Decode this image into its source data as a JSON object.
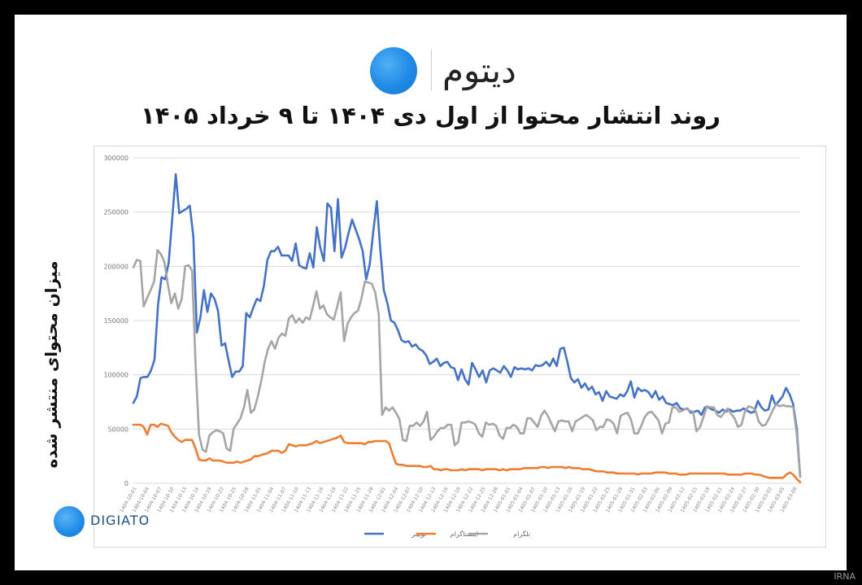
{
  "brand": {
    "name_fa": "دیتوم",
    "footer_logo_text": "DIGIATO"
  },
  "title": "روند انتشار محتوا از اول دی ۱۴۰۴ تا ۹ خرداد ۱۴۰۵",
  "watermark": "IRNA",
  "colors": {
    "twitter": "#4472c4",
    "instagram": "#ed7d31",
    "telegram": "#a5a5a5",
    "brand_blue": "#1f8ae6"
  },
  "chart_data": {
    "type": "line",
    "ylabel": "میزان محتوای منتشر شده",
    "ylim": [
      0,
      300000
    ],
    "yticks": [
      0,
      50000,
      100000,
      150000,
      200000,
      250000,
      300000
    ],
    "ytick_labels": [
      "0",
      "50000",
      "100000",
      "150000",
      "200000",
      "250000",
      "300000"
    ],
    "grid": true,
    "legend_position": "bottom",
    "x_range": [
      "1404-10-01",
      "1405-03-09"
    ],
    "x_ticks": [
      "1404-10-01",
      "1404-10-04",
      "1404-10-07",
      "1404-10-10",
      "1404-10-13",
      "1404-10-16",
      "1404-10-19",
      "1404-10-22",
      "1404-10-25",
      "1404-10-28",
      "1404-11-01",
      "1404-11-04",
      "1404-11-07",
      "1404-11-10",
      "1404-11-13",
      "1404-11-16",
      "1404-11-19",
      "1404-11-22",
      "1404-11-25",
      "1404-11-28",
      "1404-12-01",
      "1404-12-04",
      "1404-12-07",
      "1404-12-10",
      "1404-12-13",
      "1404-12-16",
      "1404-12-19",
      "1404-12-22",
      "1404-12-25",
      "1404-12-28",
      "1405-01-01",
      "1405-01-04",
      "1405-01-07",
      "1405-01-10",
      "1405-01-13",
      "1405-01-16",
      "1405-01-19",
      "1405-01-22",
      "1405-01-25",
      "1405-01-28",
      "1405-01-31",
      "1405-02-03",
      "1405-02-06",
      "1405-02-09",
      "1405-02-12",
      "1405-02-15",
      "1405-02-18",
      "1405-02-21",
      "1405-02-24",
      "1405-02-27",
      "1405-02-30",
      "1405-03-02",
      "1405-03-05",
      "1405-03-08"
    ],
    "series": [
      {
        "name": "توییتر",
        "color_key": "twitter",
        "values": [
          74000,
          80000,
          97000,
          98000,
          98000,
          104000,
          114000,
          165000,
          190000,
          188000,
          203000,
          243000,
          285000,
          249000,
          251000,
          253000,
          256000,
          227000,
          139000,
          153000,
          178000,
          158000,
          175000,
          170000,
          159000,
          127000,
          129000,
          113000,
          98000,
          103000,
          103000,
          108000,
          157000,
          153000,
          162000,
          170000,
          168000,
          182000,
          206000,
          214000,
          214000,
          218000,
          210000,
          210000,
          210000,
          205000,
          221000,
          201000,
          199000,
          198000,
          212000,
          199000,
          236000,
          217000,
          205000,
          258000,
          254000,
          214000,
          262000,
          208000,
          217000,
          231000,
          243000,
          234000,
          225000,
          214000,
          188000,
          202000,
          232000,
          260000,
          215000,
          178000,
          166000,
          150000,
          148000,
          141000,
          132000,
          130000,
          131000,
          126000,
          128000,
          124000,
          122000,
          118000,
          110000,
          112000,
          115000,
          108000,
          111000,
          112000,
          107000,
          106000,
          95000,
          105000,
          96000,
          91000,
          111000,
          105000,
          98000,
          104000,
          93000,
          104000,
          106000,
          104000,
          102000,
          108000,
          104000,
          98000,
          107000,
          105000,
          106000,
          105000,
          106000,
          104000,
          109000,
          108000,
          109000,
          112000,
          108000,
          115000,
          108000,
          124000,
          125000,
          112000,
          97000,
          93000,
          96000,
          88000,
          92000,
          86000,
          89000,
          82000,
          84000,
          76000,
          85000,
          80000,
          79000,
          78000,
          82000,
          80000,
          85000,
          94000,
          79000,
          88000,
          85000,
          86000,
          84000,
          79000,
          85000,
          77000,
          80000,
          74000,
          73000,
          72000,
          74000,
          69000,
          68000,
          69000,
          65000,
          66000,
          67000,
          63000,
          70000,
          70000,
          68000,
          67000,
          65000,
          68000,
          66000,
          68000,
          66000,
          67000,
          67000,
          69000,
          67000,
          65000,
          66000,
          76000,
          70000,
          67000,
          68000,
          81000,
          72000,
          76000,
          80000,
          88000,
          82000,
          73000,
          51000,
          6000
        ]
      },
      {
        "name": "اینستاگرام",
        "color_key": "instagram",
        "values": [
          54000,
          54000,
          54000,
          52000,
          45000,
          54000,
          54000,
          52000,
          55000,
          54000,
          53000,
          47000,
          43000,
          40000,
          38000,
          40000,
          40000,
          40000,
          32000,
          22000,
          21000,
          21000,
          23000,
          21000,
          21000,
          21000,
          20000,
          19000,
          19000,
          19000,
          20000,
          19000,
          20000,
          21000,
          22000,
          25000,
          25000,
          26000,
          27000,
          28000,
          30000,
          30000,
          30000,
          28000,
          30000,
          36000,
          35000,
          34000,
          35000,
          35000,
          35000,
          36000,
          37000,
          39000,
          37000,
          38000,
          39000,
          40000,
          41000,
          42000,
          44000,
          38000,
          37000,
          37000,
          37000,
          37000,
          37000,
          36000,
          38000,
          38000,
          39000,
          39000,
          39000,
          39000,
          37000,
          27000,
          18000,
          17000,
          17000,
          16000,
          16000,
          16000,
          16000,
          16000,
          15000,
          15000,
          16000,
          13000,
          13000,
          12000,
          13000,
          13000,
          12000,
          12000,
          12000,
          13000,
          12000,
          13000,
          13000,
          13000,
          13000,
          12000,
          13000,
          13000,
          13000,
          13000,
          12000,
          13000,
          12000,
          13000,
          13000,
          13000,
          13000,
          14000,
          14000,
          14000,
          14000,
          14000,
          15000,
          15000,
          14000,
          15000,
          15000,
          15000,
          15000,
          14000,
          15000,
          14000,
          14000,
          14000,
          13000,
          13000,
          13000,
          12000,
          11000,
          11000,
          11000,
          10000,
          10000,
          10000,
          9000,
          9000,
          9000,
          9000,
          9000,
          9000,
          8000,
          9000,
          9000,
          9000,
          9000,
          10000,
          10000,
          10000,
          10000,
          9000,
          9000,
          9000,
          8000,
          8000,
          8000,
          9000,
          9000,
          9000,
          9000,
          9000,
          9000,
          9000,
          9000,
          9000,
          9000,
          9000,
          8000,
          8000,
          8000,
          8000,
          8000,
          9000,
          9000,
          9000,
          8000,
          8000,
          7000,
          6000,
          5000,
          5000,
          5000,
          5000,
          5000,
          8000,
          10000,
          8000,
          4000,
          1000
        ]
      },
      {
        "name": "تلگرام",
        "color_key": "telegram",
        "values": [
          199000,
          206000,
          205000,
          163000,
          171000,
          178000,
          186000,
          215000,
          211000,
          204000,
          183000,
          166000,
          175000,
          161000,
          170000,
          200000,
          201000,
          196000,
          110000,
          45000,
          31000,
          29000,
          44000,
          47000,
          49000,
          48000,
          46000,
          32000,
          30000,
          50000,
          55000,
          60000,
          70000,
          86000,
          65000,
          68000,
          80000,
          94000,
          112000,
          124000,
          131000,
          124000,
          134000,
          138000,
          136000,
          152000,
          155000,
          148000,
          152000,
          148000,
          153000,
          151000,
          163000,
          177000,
          161000,
          164000,
          156000,
          153000,
          151000,
          163000,
          176000,
          131000,
          147000,
          153000,
          157000,
          159000,
          170000,
          186000,
          185000,
          184000,
          176000,
          156000,
          63000,
          70000,
          67000,
          70000,
          65000,
          59000,
          40000,
          39000,
          53000,
          53000,
          56000,
          53000,
          57000,
          66000,
          40000,
          43000,
          48000,
          51000,
          51000,
          54000,
          54000,
          35000,
          38000,
          56000,
          56000,
          57000,
          56000,
          54000,
          46000,
          43000,
          56000,
          54000,
          55000,
          53000,
          44000,
          41000,
          51000,
          51000,
          54000,
          52000,
          46000,
          46000,
          60000,
          60000,
          56000,
          52000,
          62000,
          67000,
          62000,
          55000,
          48000,
          57000,
          58000,
          57000,
          57000,
          48000,
          57000,
          59000,
          61000,
          63000,
          61000,
          58000,
          49000,
          52000,
          52000,
          59000,
          58000,
          55000,
          46000,
          62000,
          64000,
          65000,
          59000,
          46000,
          46000,
          53000,
          61000,
          65000,
          66000,
          62000,
          58000,
          46000,
          55000,
          56000,
          70000,
          70000,
          66000,
          67000,
          69000,
          67000,
          66000,
          48000,
          52000,
          61000,
          71000,
          70000,
          70000,
          63000,
          61000,
          65000,
          69000,
          64000,
          60000,
          52000,
          54000,
          66000,
          71000,
          70000,
          68000,
          57000,
          53000,
          54000,
          60000,
          67000,
          73000,
          71000,
          72000,
          71000,
          71000,
          70000,
          45000,
          6000
        ]
      }
    ]
  }
}
